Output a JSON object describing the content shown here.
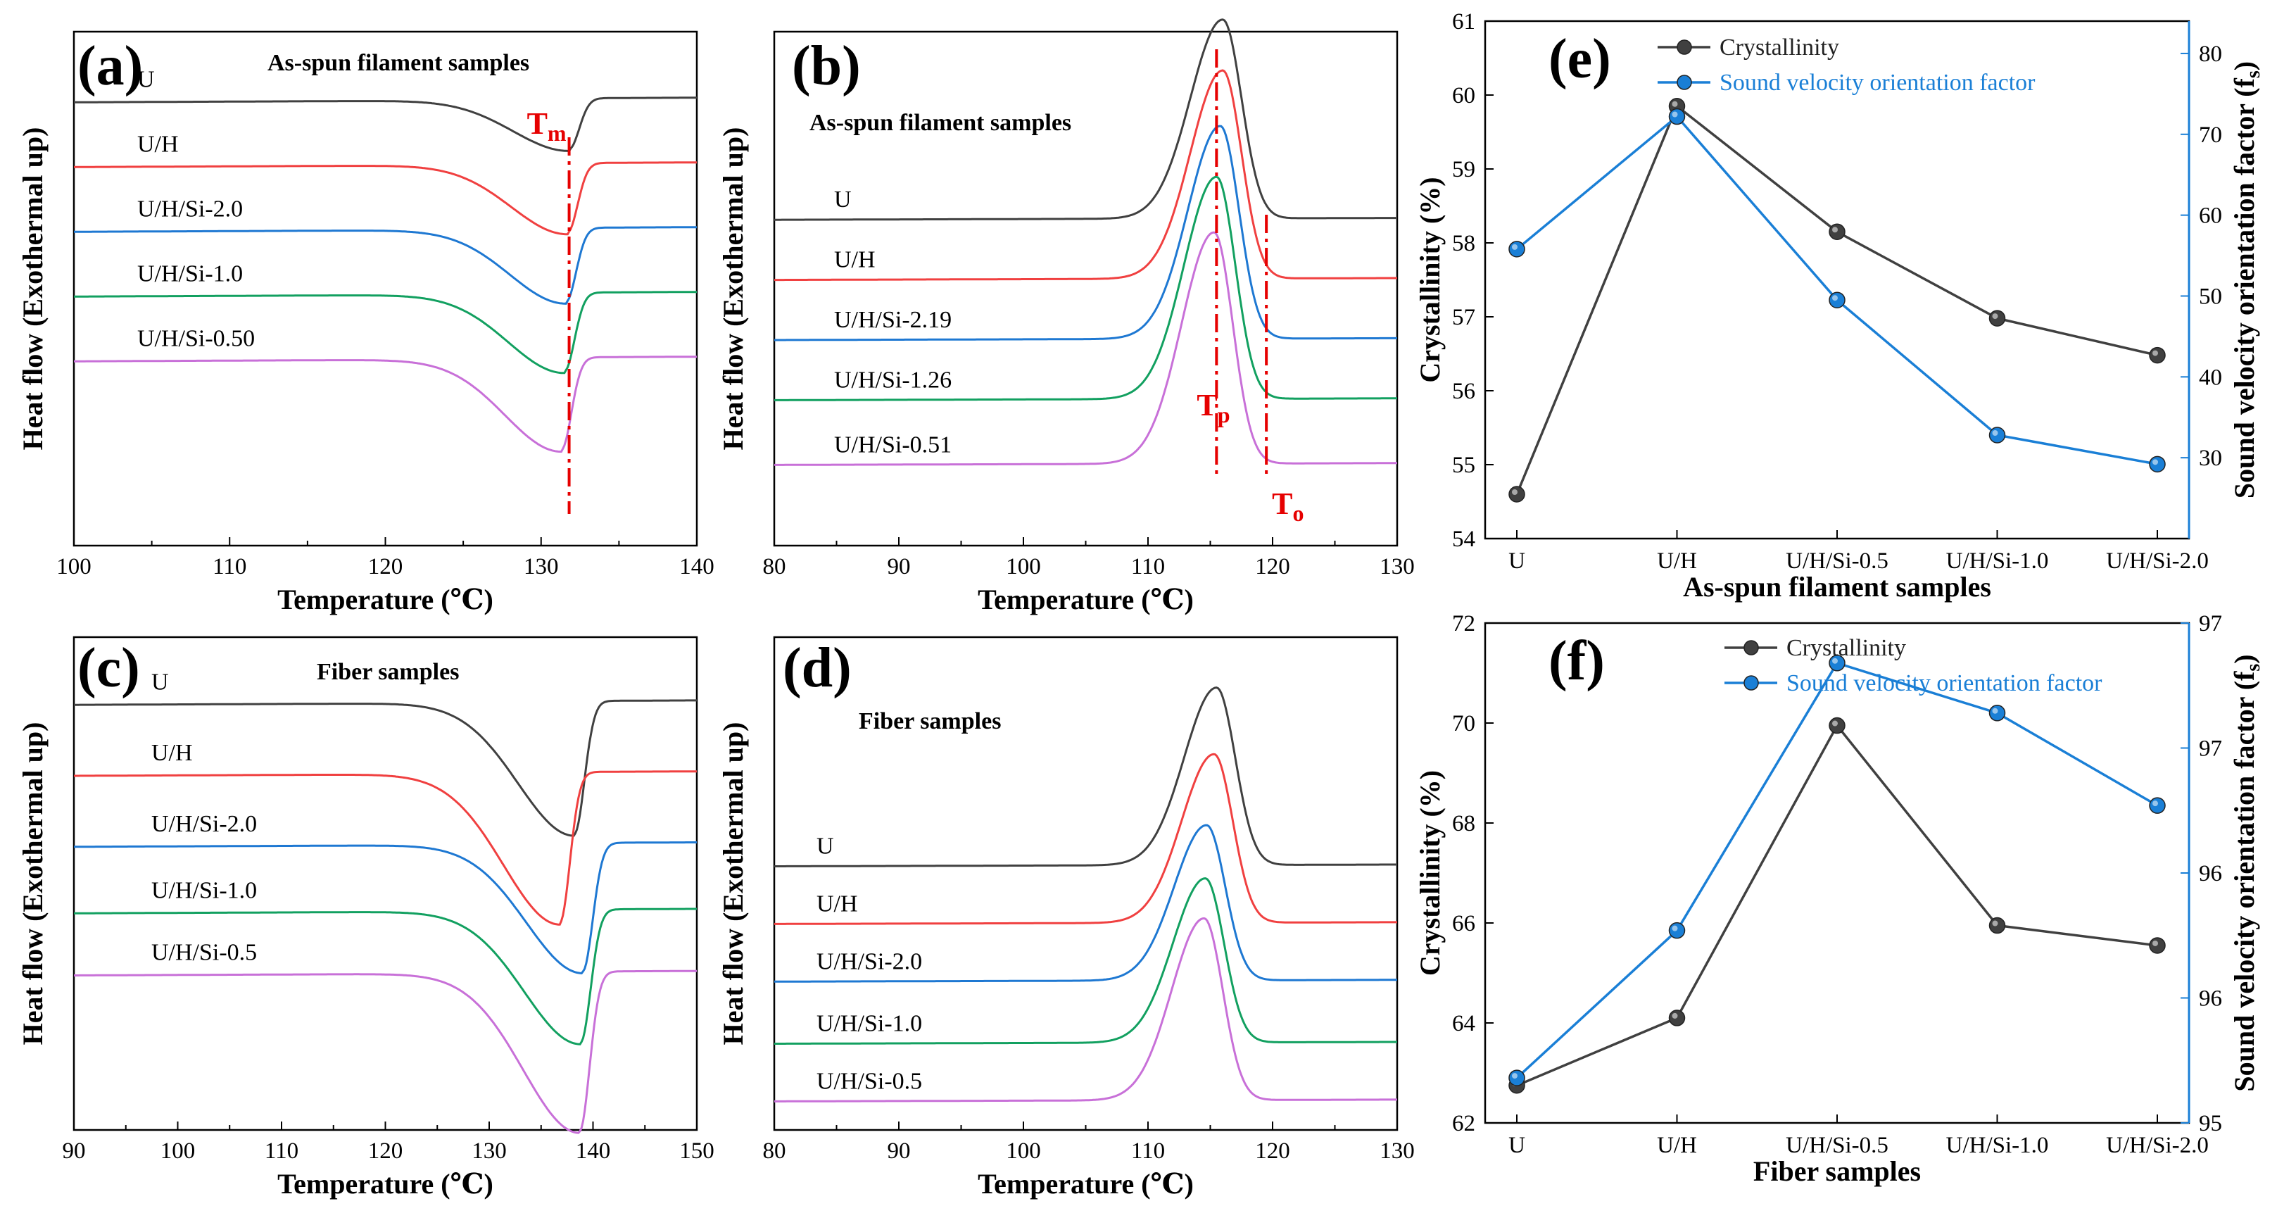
{
  "chart_data": [
    {
      "panel": "(a)",
      "type": "line",
      "title": "As-spun filament samples",
      "xlabel": "Temperature (℃)",
      "ylabel": "Heat flow (Exothermal up)",
      "xlim": [
        100,
        140
      ],
      "xticks": [
        "100",
        "110",
        "120",
        "130",
        "140"
      ],
      "peak_kind": "endotherm",
      "peak_x": 131.8,
      "marker_x": 131.8,
      "marker_label_main": "T",
      "marker_label_sub": "m",
      "series": [
        {
          "name": "U",
          "color": "#404040",
          "baseline": 0.92,
          "depth": 0.11,
          "peak": 131.8
        },
        {
          "name": "U/H",
          "color": "#f04040",
          "baseline": 0.78,
          "depth": 0.15,
          "peak": 131.7
        },
        {
          "name": "U/H/Si-2.0",
          "color": "#1e78d2",
          "baseline": 0.64,
          "depth": 0.16,
          "peak": 131.6
        },
        {
          "name": "U/H/Si-1.0",
          "color": "#12a060",
          "baseline": 0.5,
          "depth": 0.17,
          "peak": 131.5
        },
        {
          "name": "U/H/Si-0.50",
          "color": "#c870d8",
          "baseline": 0.36,
          "depth": 0.2,
          "peak": 131.3
        }
      ]
    },
    {
      "panel": "(b)",
      "type": "line",
      "title": "As-spun filament samples",
      "xlabel": "Temperature (℃)",
      "ylabel": "Heat flow (Exothermal up)",
      "xlim": [
        80,
        130
      ],
      "xticks": [
        "80",
        "90",
        "100",
        "110",
        "120",
        "130"
      ],
      "peak_kind": "exotherm",
      "peak_x": 115.5,
      "marker_x": 115.5,
      "marker2_x": 119.5,
      "marker_label_main": "T",
      "marker_label_sub": "p",
      "marker2_label_main": "T",
      "marker2_label_sub": "o",
      "series": [
        {
          "name": "U",
          "color": "#404040",
          "baseline": 0.66,
          "height": 0.43,
          "peak": 116
        },
        {
          "name": "U/H",
          "color": "#f04040",
          "baseline": 0.53,
          "height": 0.45,
          "peak": 116
        },
        {
          "name": "U/H/Si-2.19",
          "color": "#1e78d2",
          "baseline": 0.4,
          "height": 0.46,
          "peak": 115.8
        },
        {
          "name": "U/H/Si-1.26",
          "color": "#12a060",
          "baseline": 0.27,
          "height": 0.48,
          "peak": 115.5
        },
        {
          "name": "U/H/Si-0.51",
          "color": "#c870d8",
          "baseline": 0.13,
          "height": 0.5,
          "peak": 115.3
        }
      ]
    },
    {
      "panel": "(c)",
      "type": "line",
      "title": "Fiber samples",
      "xlabel": "Temperature (℃)",
      "ylabel": "Heat flow (Exothermal up)",
      "xlim": [
        90,
        150
      ],
      "xticks": [
        "90",
        "100",
        "110",
        "120",
        "130",
        "140",
        "150"
      ],
      "peak_kind": "endotherm",
      "peak_x": 138,
      "series": [
        {
          "name": "U",
          "color": "#404040",
          "baseline": 0.92,
          "depth": 0.3,
          "peak": 138.2
        },
        {
          "name": "U/H",
          "color": "#f04040",
          "baseline": 0.76,
          "depth": 0.34,
          "peak": 136.8
        },
        {
          "name": "U/H/Si-2.0",
          "color": "#1e78d2",
          "baseline": 0.6,
          "depth": 0.29,
          "peak": 139
        },
        {
          "name": "U/H/Si-1.0",
          "color": "#12a060",
          "baseline": 0.45,
          "depth": 0.3,
          "peak": 138.8
        },
        {
          "name": "U/H/Si-0.5",
          "color": "#c870d8",
          "baseline": 0.31,
          "depth": 0.36,
          "peak": 138.7
        }
      ]
    },
    {
      "panel": "(d)",
      "type": "line",
      "title": "Fiber samples",
      "xlabel": "Temperature (℃)",
      "ylabel": "Heat flow (Exothermal up)",
      "xlim": [
        80,
        130
      ],
      "xticks": [
        "80",
        "90",
        "100",
        "110",
        "120",
        "130"
      ],
      "peak_kind": "exotherm",
      "series": [
        {
          "name": "U",
          "color": "#404040",
          "baseline": 0.55,
          "height": 0.4,
          "peak": 115.5
        },
        {
          "name": "U/H",
          "color": "#f04040",
          "baseline": 0.42,
          "height": 0.38,
          "peak": 115.3
        },
        {
          "name": "U/H/Si-2.0",
          "color": "#1e78d2",
          "baseline": 0.29,
          "height": 0.35,
          "peak": 114.7
        },
        {
          "name": "U/H/Si-1.0",
          "color": "#12a060",
          "baseline": 0.15,
          "height": 0.37,
          "peak": 114.6
        },
        {
          "name": "U/H/Si-0.5",
          "color": "#c870d8",
          "baseline": 0.02,
          "height": 0.41,
          "peak": 114.5
        }
      ]
    },
    {
      "panel": "(e)",
      "type": "line",
      "xlabel": "As-spun filament samples",
      "ylabel": "Crystallinity (%)",
      "ylabel2_main": "Sound velocity orientation factor (f",
      "ylabel2_sub": "s",
      "ylabel2_end": ")",
      "categories": [
        "U",
        "U/H",
        "U/H/Si-0.5",
        "U/H/Si-1.0",
        "U/H/Si-2.0"
      ],
      "ylim": [
        54,
        61
      ],
      "yticks": [
        "54",
        "55",
        "56",
        "57",
        "58",
        "59",
        "60",
        "61"
      ],
      "y2lim": [
        20,
        84
      ],
      "y2ticks": [
        "30",
        "40",
        "50",
        "60",
        "70",
        "80"
      ],
      "series": [
        {
          "name": "Crystallinity",
          "color": "#404040",
          "axis": "left",
          "values": [
            54.6,
            59.85,
            58.15,
            56.98,
            56.48
          ]
        },
        {
          "name": "Sound velocity orientation factor",
          "color": "#1a7fd6",
          "axis": "right",
          "values": [
            55.8,
            72.2,
            49.5,
            32.8,
            29.2
          ]
        }
      ]
    },
    {
      "panel": "(f)",
      "type": "line",
      "xlabel": "Fiber samples",
      "ylabel": "Crystallinity (%)",
      "ylabel2_main": "Sound velocity orientation factor (f",
      "ylabel2_sub": "s",
      "ylabel2_end": ")",
      "categories": [
        "U",
        "U/H",
        "U/H/Si-0.5",
        "U/H/Si-1.0",
        "U/H/Si-2.0"
      ],
      "ylim": [
        62,
        72
      ],
      "yticks": [
        "62",
        "64",
        "66",
        "68",
        "70",
        "72"
      ],
      "y2lim": [
        95,
        97
      ],
      "y2ticks": [
        "95",
        "96",
        "96",
        "97",
        "97"
      ],
      "series": [
        {
          "name": "Crystallinity",
          "color": "#404040",
          "axis": "left",
          "values": [
            62.75,
            64.1,
            69.95,
            65.95,
            65.55
          ]
        },
        {
          "name": "Sound velocity orientation factor",
          "color": "#1a7fd6",
          "axis": "right",
          "values": [
            95.18,
            95.77,
            96.84,
            96.64,
            96.27
          ]
        }
      ]
    }
  ]
}
